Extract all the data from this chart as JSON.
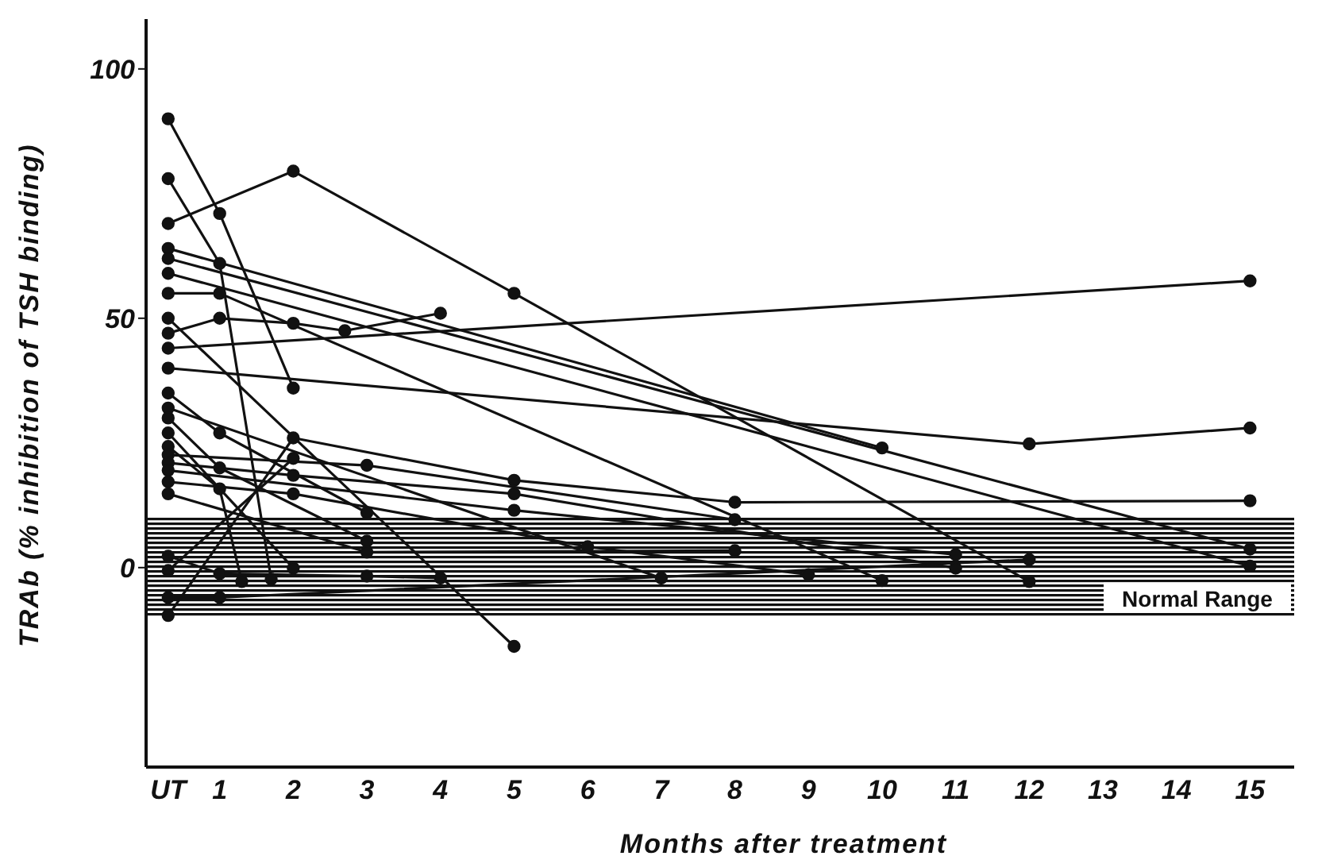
{
  "chart_data": {
    "type": "line",
    "xlabel": "Months after treatment",
    "ylabel": "TRAb (% inhibition of TSH binding)",
    "xlim": [
      0,
      15.6
    ],
    "xticks": [
      {
        "value": 0.3,
        "label": "UT"
      },
      1,
      2,
      3,
      4,
      5,
      6,
      7,
      8,
      9,
      10,
      11,
      12,
      13,
      14,
      15
    ],
    "ylim": [
      -40,
      110
    ],
    "yticks": [
      0,
      50,
      100
    ],
    "grid": false,
    "marker": "circle",
    "line_style": "solid",
    "bands": [
      {
        "axis": "y",
        "from": -10,
        "to": 10,
        "label": "Normal Range",
        "color": "#111111"
      }
    ],
    "series": [
      {
        "color": "#111111",
        "x": [
          0.3,
          1,
          2
        ],
        "values": [
          90,
          71,
          36
        ]
      },
      {
        "color": "#111111",
        "x": [
          0.3,
          1,
          1.7
        ],
        "values": [
          78,
          61,
          -2.3
        ]
      },
      {
        "color": "#111111",
        "x": [
          0.3,
          2,
          5,
          12
        ],
        "values": [
          69,
          79.5,
          55,
          -2.8
        ]
      },
      {
        "color": "#111111",
        "x": [
          0.3,
          10
        ],
        "values": [
          64,
          24
        ]
      },
      {
        "color": "#111111",
        "x": [
          0.3,
          15
        ],
        "values": [
          62,
          3.7
        ]
      },
      {
        "color": "#111111",
        "x": [
          0.3,
          15
        ],
        "values": [
          59,
          0.3
        ]
      },
      {
        "color": "#111111",
        "x": [
          0.3,
          1,
          10
        ],
        "values": [
          55,
          55,
          -2.6
        ]
      },
      {
        "color": "#111111",
        "x": [
          0.3,
          1,
          2,
          2.7,
          4
        ],
        "values": [
          47,
          50,
          49,
          47.5,
          51
        ]
      },
      {
        "color": "#111111",
        "x": [
          0.3,
          5
        ],
        "values": [
          50,
          -15.8
        ]
      },
      {
        "color": "#111111",
        "x": [
          0.3,
          15
        ],
        "values": [
          44,
          57.5
        ]
      },
      {
        "color": "#111111",
        "x": [
          0.3,
          12,
          15
        ],
        "values": [
          40,
          24.8,
          28
        ]
      },
      {
        "color": "#111111",
        "x": [
          0.3,
          1,
          3
        ],
        "values": [
          35,
          27,
          11
        ]
      },
      {
        "color": "#111111",
        "x": [
          0.3,
          7
        ],
        "values": [
          32,
          -2.1
        ]
      },
      {
        "color": "#111111",
        "x": [
          0.3,
          1,
          3
        ],
        "values": [
          30,
          20,
          5.3
        ]
      },
      {
        "color": "#111111",
        "x": [
          0.3,
          2,
          5,
          8,
          15
        ],
        "values": [
          -9.6,
          26,
          17.5,
          13.1,
          13.4
        ]
      },
      {
        "color": "#111111",
        "x": [
          0.3,
          1,
          12
        ],
        "values": [
          -6,
          -6,
          1.6
        ]
      },
      {
        "color": "#111111",
        "x": [
          0.3,
          1,
          1.3
        ],
        "values": [
          24.3,
          15.8,
          -2.8
        ]
      },
      {
        "color": "#111111",
        "x": [
          0.3,
          3,
          8
        ],
        "values": [
          22.6,
          20.5,
          9.6
        ]
      },
      {
        "color": "#111111",
        "x": [
          0.3,
          2,
          5,
          11
        ],
        "values": [
          21,
          18.5,
          14.8,
          -0.1
        ]
      },
      {
        "color": "#111111",
        "x": [
          0.3,
          5,
          11
        ],
        "values": [
          19.5,
          11.5,
          2.6
        ]
      },
      {
        "color": "#111111",
        "x": [
          0.3,
          2,
          6,
          9
        ],
        "values": [
          17.2,
          14.8,
          4.2,
          -1.4
        ]
      },
      {
        "color": "#111111",
        "x": [
          0.3,
          3,
          8
        ],
        "values": [
          14.8,
          3.1,
          3.4
        ]
      },
      {
        "color": "#111111",
        "x": [
          0.3,
          1,
          3,
          4
        ],
        "values": [
          2.3,
          -1.2,
          -1.7,
          -2.1
        ]
      },
      {
        "color": "#111111",
        "x": [
          0.3,
          2
        ],
        "values": [
          -0.6,
          21.9
        ]
      },
      {
        "color": "#111111",
        "x": [
          0.3,
          2
        ],
        "values": [
          27,
          -0.1
        ]
      }
    ]
  }
}
